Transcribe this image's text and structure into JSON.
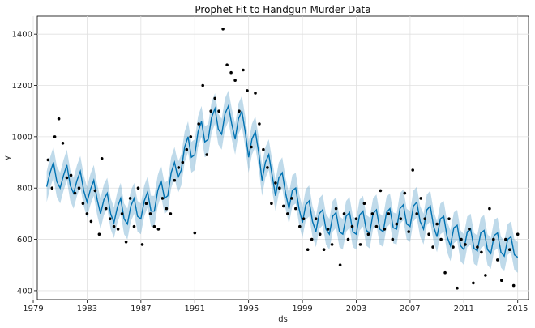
{
  "chart_data": {
    "type": "line",
    "title": "Prophet Fit to Handgun Murder Data",
    "xlabel": "ds",
    "ylabel": "y",
    "xlim": [
      1979.3,
      2015.8
    ],
    "ylim": [
      365,
      1470
    ],
    "grid": true,
    "x_ticks": [
      1979,
      1983,
      1987,
      1991,
      1995,
      1999,
      2003,
      2007,
      2011,
      2015
    ],
    "y_ticks": [
      400,
      600,
      800,
      1000,
      1200,
      1400
    ],
    "series": [
      {
        "role": "forecast",
        "color": "#0072B2",
        "x": [
          1980.0,
          1980.25,
          1980.5,
          1980.75,
          1981.0,
          1981.25,
          1981.5,
          1981.75,
          1982.0,
          1982.25,
          1982.5,
          1982.75,
          1983.0,
          1983.25,
          1983.5,
          1983.75,
          1984.0,
          1984.25,
          1984.5,
          1984.75,
          1985.0,
          1985.25,
          1985.5,
          1985.75,
          1986.0,
          1986.25,
          1986.5,
          1986.75,
          1987.0,
          1987.25,
          1987.5,
          1987.75,
          1988.0,
          1988.25,
          1988.5,
          1988.75,
          1989.0,
          1989.25,
          1989.5,
          1989.75,
          1990.0,
          1990.25,
          1990.5,
          1990.75,
          1991.0,
          1991.25,
          1991.5,
          1991.75,
          1992.0,
          1992.25,
          1992.5,
          1992.75,
          1993.0,
          1993.25,
          1993.5,
          1993.75,
          1994.0,
          1994.25,
          1994.5,
          1994.75,
          1995.0,
          1995.25,
          1995.5,
          1995.75,
          1996.0,
          1996.25,
          1996.5,
          1996.75,
          1997.0,
          1997.25,
          1997.5,
          1997.75,
          1998.0,
          1998.25,
          1998.5,
          1998.75,
          1999.0,
          1999.25,
          1999.5,
          1999.75,
          2000.0,
          2000.25,
          2000.5,
          2000.75,
          2001.0,
          2001.25,
          2001.5,
          2001.75,
          2002.0,
          2002.25,
          2002.5,
          2002.75,
          2003.0,
          2003.25,
          2003.5,
          2003.75,
          2004.0,
          2004.25,
          2004.5,
          2004.75,
          2005.0,
          2005.25,
          2005.5,
          2005.75,
          2006.0,
          2006.25,
          2006.5,
          2006.75,
          2007.0,
          2007.25,
          2007.5,
          2007.75,
          2008.0,
          2008.25,
          2008.5,
          2008.75,
          2009.0,
          2009.25,
          2009.5,
          2009.75,
          2010.0,
          2010.25,
          2010.5,
          2010.75,
          2011.0,
          2011.25,
          2011.5,
          2011.75,
          2012.0,
          2012.25,
          2012.5,
          2012.75,
          2013.0,
          2013.25,
          2013.5,
          2013.75,
          2014.0,
          2014.25,
          2014.5,
          2014.75,
          2015.0
        ],
        "y": [
          805,
          860,
          900,
          825,
          800,
          850,
          890,
          810,
          780,
          830,
          865,
          790,
          745,
          795,
          830,
          755,
          700,
          755,
          780,
          700,
          665,
          725,
          760,
          680,
          660,
          730,
          760,
          690,
          680,
          750,
          785,
          710,
          710,
          790,
          830,
          760,
          770,
          860,
          900,
          840,
          870,
          960,
          1000,
          920,
          930,
          1020,
          1060,
          980,
          990,
          1075,
          1110,
          1030,
          1010,
          1090,
          1120,
          1050,
          990,
          1070,
          1100,
          1020,
          920,
          990,
          1020,
          940,
          830,
          900,
          930,
          850,
          770,
          840,
          860,
          780,
          720,
          790,
          800,
          720,
          665,
          735,
          750,
          670,
          630,
          700,
          715,
          640,
          620,
          690,
          705,
          630,
          620,
          690,
          705,
          630,
          620,
          695,
          710,
          635,
          625,
          700,
          715,
          640,
          630,
          705,
          720,
          645,
          640,
          720,
          735,
          660,
          650,
          730,
          745,
          670,
          640,
          715,
          730,
          650,
          610,
          680,
          690,
          610,
          575,
          645,
          655,
          575,
          560,
          630,
          640,
          565,
          555,
          625,
          635,
          560,
          545,
          615,
          625,
          550,
          535,
          600,
          610,
          540,
          530
        ]
      }
    ],
    "interval_halfwidth": 60,
    "interval_color": "#2b83ba",
    "observed": {
      "color": "#000000",
      "x": [
        1980.1,
        1980.4,
        1980.6,
        1980.9,
        1981.2,
        1981.5,
        1981.8,
        1982.1,
        1982.4,
        1982.7,
        1983.0,
        1983.3,
        1983.6,
        1983.9,
        1984.1,
        1984.4,
        1984.7,
        1985.0,
        1985.3,
        1985.6,
        1985.9,
        1986.2,
        1986.5,
        1986.8,
        1987.1,
        1987.4,
        1987.7,
        1988.0,
        1988.3,
        1988.6,
        1988.9,
        1989.2,
        1989.5,
        1989.8,
        1990.1,
        1990.4,
        1990.7,
        1991.0,
        1991.3,
        1991.6,
        1991.9,
        1992.2,
        1992.5,
        1992.8,
        1993.1,
        1993.4,
        1993.7,
        1994.0,
        1994.3,
        1994.6,
        1994.9,
        1995.2,
        1995.5,
        1995.8,
        1996.1,
        1996.4,
        1996.7,
        1997.0,
        1997.3,
        1997.6,
        1997.9,
        1998.2,
        1998.5,
        1998.8,
        1999.1,
        1999.4,
        1999.7,
        2000.0,
        2000.3,
        2000.6,
        2000.9,
        2001.2,
        2001.5,
        2001.8,
        2002.1,
        2002.4,
        2002.7,
        2003.0,
        2003.3,
        2003.6,
        2003.9,
        2004.2,
        2004.5,
        2004.8,
        2005.1,
        2005.4,
        2005.7,
        2006.0,
        2006.3,
        2006.6,
        2006.9,
        2007.2,
        2007.5,
        2007.8,
        2008.1,
        2008.4,
        2008.7,
        2009.0,
        2009.3,
        2009.6,
        2009.9,
        2010.2,
        2010.5,
        2010.8,
        2011.1,
        2011.4,
        2011.7,
        2012.0,
        2012.3,
        2012.6,
        2012.9,
        2013.2,
        2013.5,
        2013.8,
        2014.1,
        2014.4,
        2014.7,
        2015.0
      ],
      "y": [
        910,
        800,
        1000,
        1070,
        975,
        840,
        850,
        780,
        800,
        740,
        700,
        670,
        790,
        620,
        915,
        720,
        680,
        650,
        640,
        700,
        590,
        760,
        650,
        800,
        580,
        740,
        700,
        650,
        640,
        760,
        720,
        700,
        830,
        880,
        900,
        950,
        1000,
        625,
        1050,
        1200,
        930,
        1100,
        1150,
        1100,
        1420,
        1280,
        1250,
        1220,
        1100,
        1260,
        1180,
        960,
        1170,
        1050,
        950,
        880,
        740,
        820,
        800,
        730,
        700,
        760,
        720,
        650,
        680,
        560,
        600,
        680,
        620,
        560,
        640,
        580,
        720,
        500,
        700,
        600,
        650,
        680,
        580,
        740,
        620,
        700,
        650,
        790,
        640,
        700,
        600,
        660,
        680,
        780,
        630,
        870,
        700,
        760,
        680,
        620,
        570,
        660,
        600,
        470,
        680,
        570,
        410,
        600,
        580,
        640,
        430,
        570,
        550,
        460,
        720,
        600,
        520,
        440,
        600,
        560,
        420,
        620
      ]
    }
  }
}
